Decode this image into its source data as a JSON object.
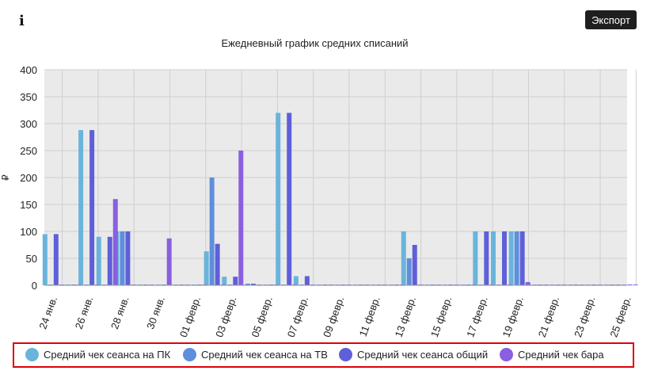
{
  "header": {
    "info_icon": "i",
    "export_label": "Экспорт"
  },
  "chart_data": {
    "type": "bar",
    "title": "Ежедневный график средних списаний",
    "xlabel": "",
    "ylabel": "₽",
    "ylim": [
      0,
      400
    ],
    "yticks": [
      0,
      50,
      100,
      150,
      200,
      250,
      300,
      350,
      400
    ],
    "grid": true,
    "legend_position": "bottom",
    "categories": [
      "24 янв.",
      "25 янв.",
      "26 янв.",
      "27 янв.",
      "28 янв.",
      "29 янв.",
      "30 янв.",
      "31 янв.",
      "01 февр.",
      "02 февр.",
      "03 февр.",
      "04 февр.",
      "05 февр.",
      "06 февр.",
      "07 февр.",
      "08 февр.",
      "09 февр.",
      "10 февр.",
      "11 февр.",
      "12 февр.",
      "13 февр.",
      "14 февр.",
      "15 февр.",
      "16 февр.",
      "17 февр.",
      "18 февр.",
      "19 февр.",
      "20 февр.",
      "21 февр.",
      "22 февр.",
      "23 февр.",
      "24 февр.",
      "25 февр."
    ],
    "tick_labels": [
      "24 янв.",
      "26 янв.",
      "28 янв.",
      "30 янв.",
      "01 февр.",
      "03 февр.",
      "05 февр.",
      "07 февр.",
      "09 февр.",
      "11 февр.",
      "13 февр.",
      "15 февр.",
      "17 февр.",
      "19 февр.",
      "21 февр.",
      "23 февр.",
      "25 февр."
    ],
    "series": [
      {
        "name": "Средний чек сеанса на ПК",
        "color": "#6ab4dc",
        "values": [
          95,
          0,
          288,
          90,
          100,
          0,
          0,
          0,
          0,
          63,
          16,
          0,
          0,
          320,
          17,
          0,
          0,
          0,
          0,
          0,
          100,
          0,
          0,
          0,
          100,
          100,
          100,
          0,
          0,
          0,
          0,
          0,
          0
        ]
      },
      {
        "name": "Средний чек сеанса на ТВ",
        "color": "#5e8fdc",
        "values": [
          0,
          0,
          0,
          0,
          100,
          0,
          0,
          0,
          0,
          200,
          0,
          3,
          0,
          0,
          0,
          0,
          0,
          0,
          0,
          0,
          50,
          0,
          0,
          0,
          0,
          0,
          100,
          0,
          0,
          0,
          0,
          0,
          0
        ]
      },
      {
        "name": "Средний чек сеанса общий",
        "color": "#5f5fd9",
        "values": [
          95,
          0,
          288,
          90,
          100,
          0,
          0,
          0,
          0,
          77,
          16,
          3,
          0,
          320,
          17,
          0,
          0,
          0,
          0,
          0,
          75,
          0,
          0,
          0,
          100,
          100,
          100,
          0,
          0,
          0,
          0,
          0,
          0
        ]
      },
      {
        "name": "Средний чек бара",
        "color": "#8a5fe0",
        "values": [
          0,
          0,
          0,
          160,
          0,
          0,
          87,
          0,
          0,
          0,
          250,
          0,
          0,
          0,
          0,
          0,
          0,
          0,
          0,
          0,
          0,
          0,
          0,
          0,
          0,
          0,
          6,
          0,
          0,
          0,
          0,
          0,
          0
        ]
      }
    ]
  }
}
